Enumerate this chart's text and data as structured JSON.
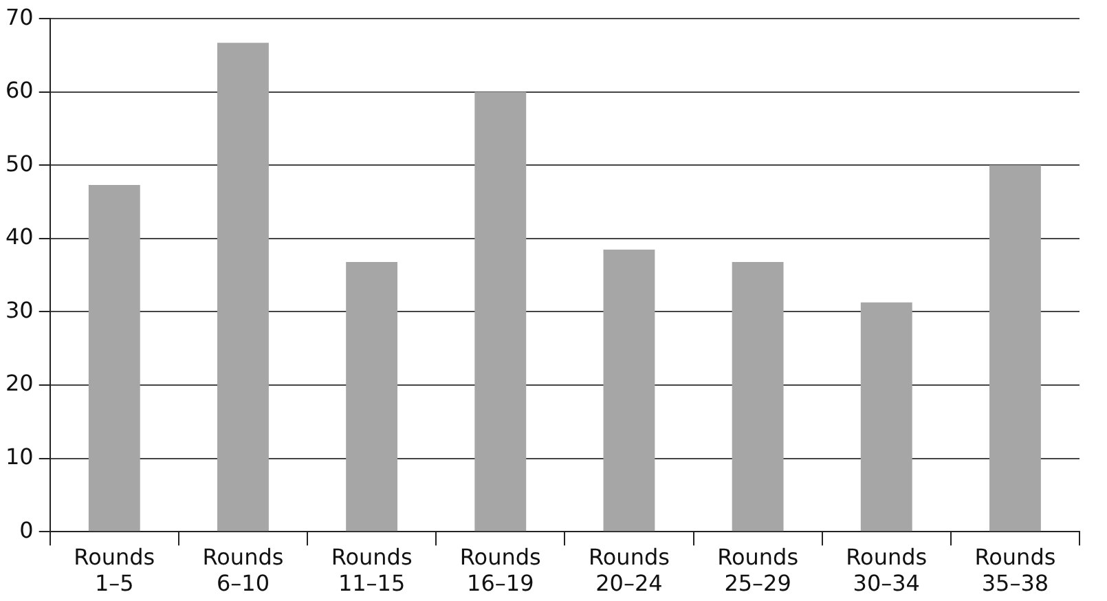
{
  "chart_data": {
    "type": "bar",
    "categories": [
      "Rounds 1–5",
      "Rounds 6–10",
      "Rounds 11–15",
      "Rounds 16–19",
      "Rounds 20–24",
      "Rounds 25–29",
      "Rounds 30–34",
      "Rounds 35–38"
    ],
    "values": [
      47.3,
      66.7,
      36.8,
      60,
      38.5,
      36.8,
      31.3,
      50
    ],
    "color": "#a6a6a6",
    "ylim": [
      0,
      70
    ],
    "yticks": [
      0,
      10,
      20,
      30,
      40,
      50,
      60,
      70
    ],
    "grid": "y",
    "legend": false
  }
}
